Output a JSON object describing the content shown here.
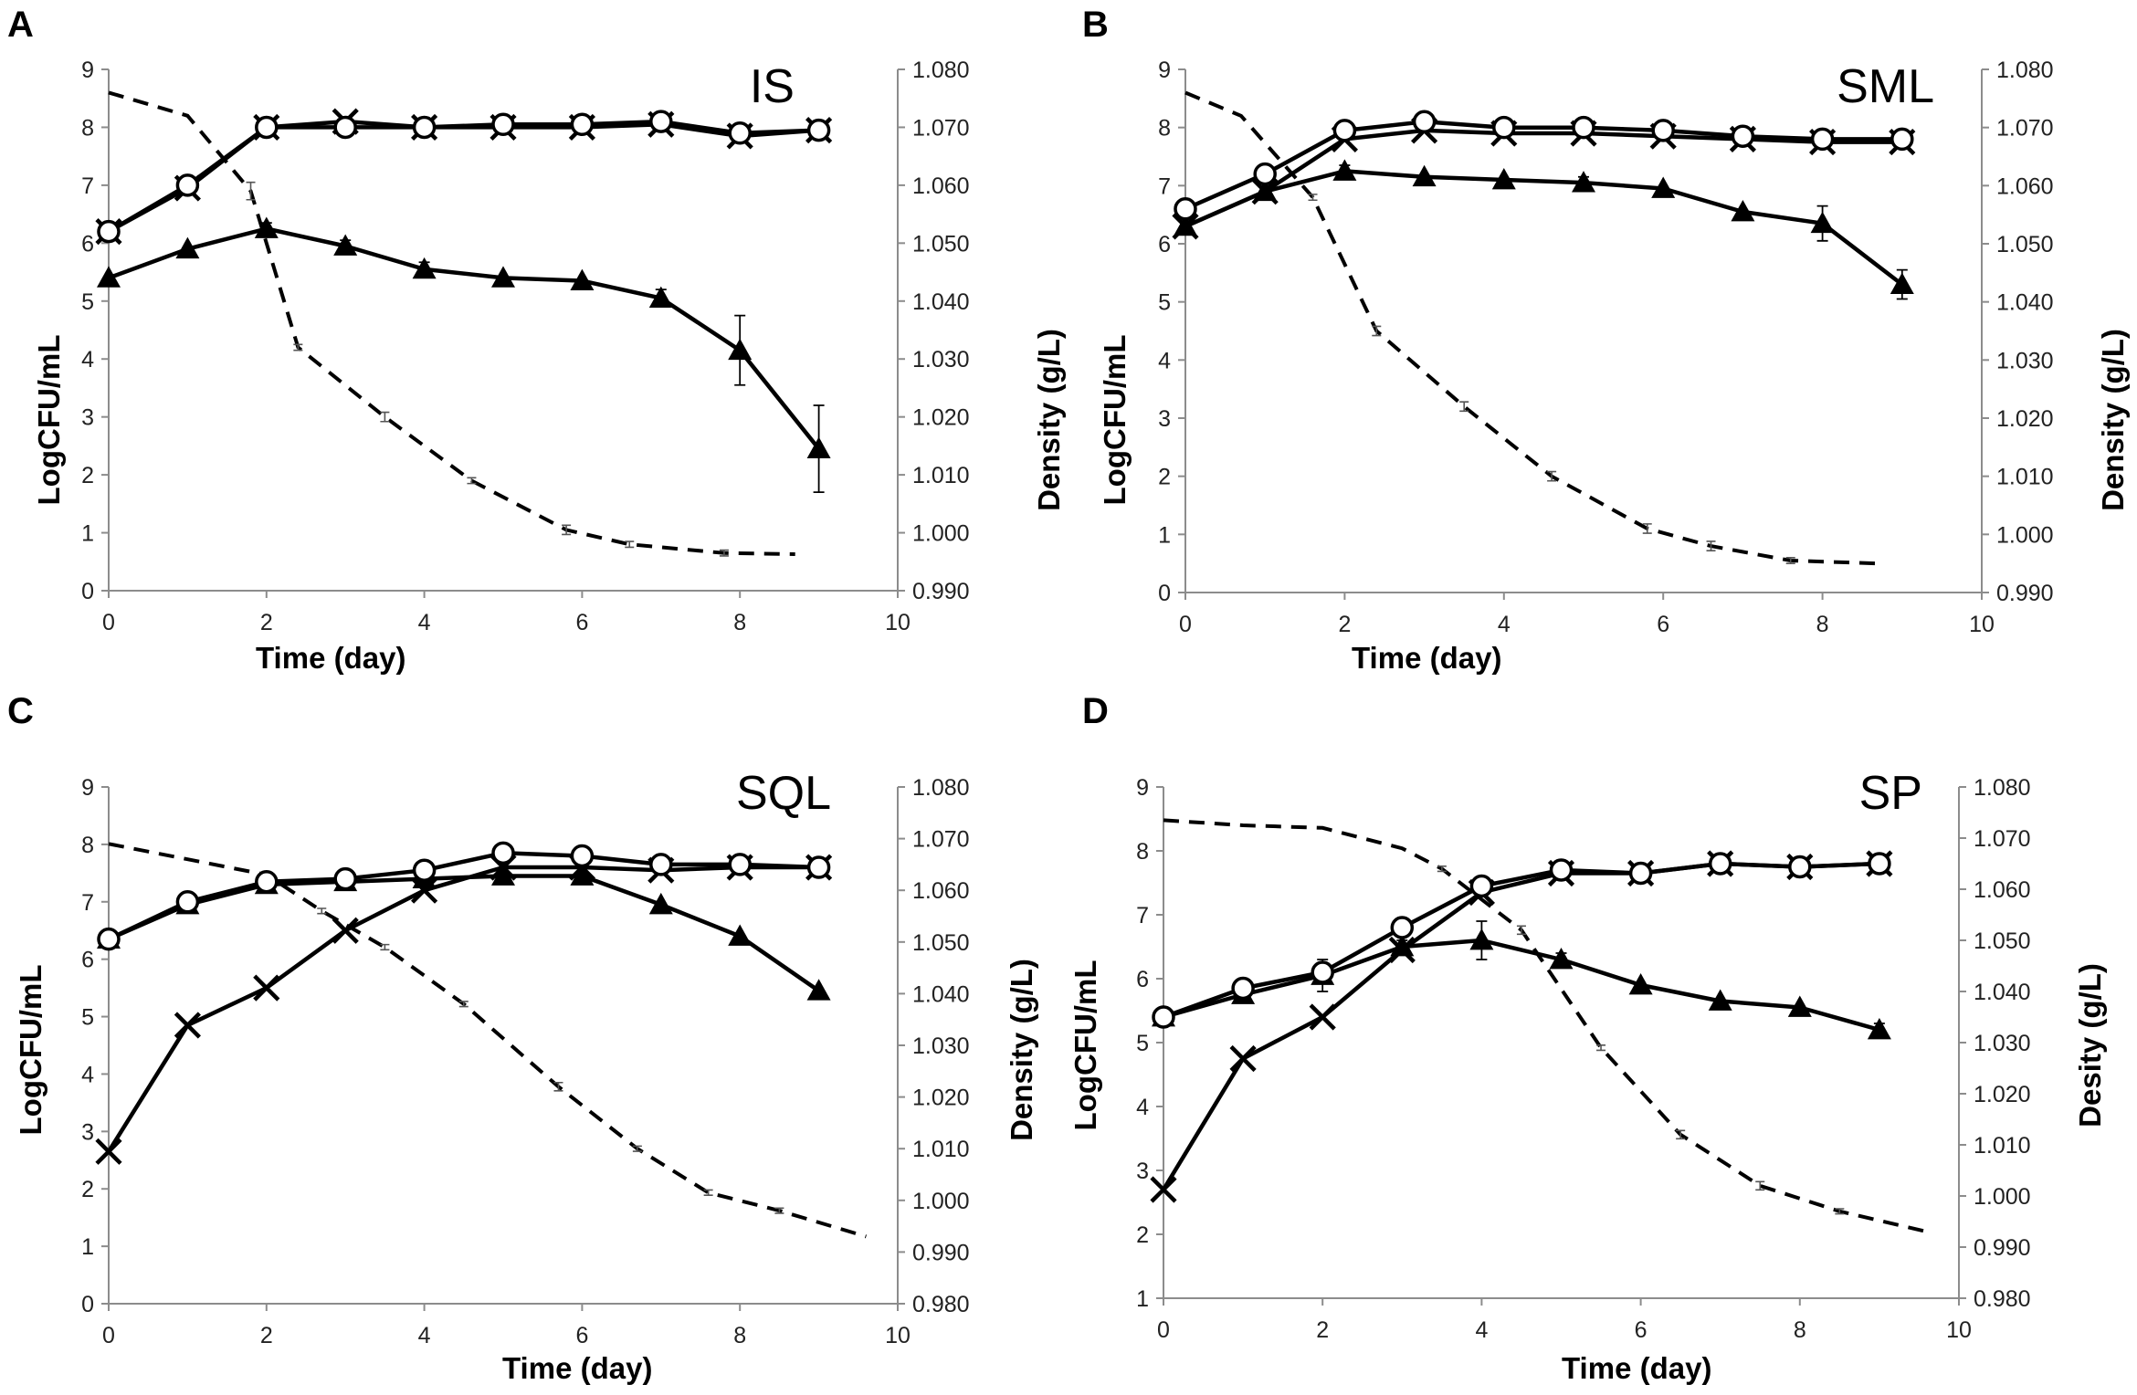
{
  "chart_data": [
    {
      "type": "line",
      "panel": "A",
      "title": "IS",
      "xlabel": "Time (day)",
      "ylabel": "LogCFU/mL",
      "y2label": "Density (g/L)",
      "xlim": [
        0,
        10
      ],
      "ylim": [
        0,
        9
      ],
      "y2lim": [
        0.99,
        1.08
      ],
      "xticks": [
        "0",
        "2",
        "4",
        "6",
        "8",
        "10"
      ],
      "yticks": [
        "0",
        "1",
        "2",
        "3",
        "4",
        "5",
        "6",
        "7",
        "8",
        "9"
      ],
      "y2ticks": [
        "0.990",
        "1.000",
        "1.010",
        "1.020",
        "1.030",
        "1.040",
        "1.050",
        "1.060",
        "1.070",
        "1.080"
      ],
      "series": [
        {
          "name": "circle",
          "marker": "circle",
          "x": [
            0,
            1,
            2,
            3,
            4,
            5,
            6,
            7,
            8,
            9
          ],
          "values": [
            6.2,
            7.0,
            8.0,
            8.0,
            8.0,
            8.05,
            8.05,
            8.1,
            7.9,
            7.95
          ]
        },
        {
          "name": "cross",
          "marker": "x",
          "x": [
            0,
            1,
            2,
            3,
            4,
            5,
            6,
            7,
            8,
            9
          ],
          "values": [
            6.2,
            6.95,
            8.0,
            8.1,
            8.0,
            8.0,
            8.0,
            8.05,
            7.85,
            7.95
          ]
        },
        {
          "name": "triangle",
          "marker": "triangle",
          "x": [
            0,
            1,
            2,
            3,
            4,
            5,
            6,
            7,
            8,
            9
          ],
          "values": [
            5.4,
            5.9,
            6.25,
            5.95,
            5.55,
            5.4,
            5.35,
            5.05,
            4.15,
            2.45
          ],
          "errors": [
            0.05,
            0.05,
            0.1,
            0.1,
            0.12,
            0.08,
            0.08,
            0.15,
            0.6,
            0.75
          ]
        }
      ],
      "density": {
        "x": [
          0,
          1,
          1.8,
          2.4,
          3.5,
          4.6,
          5.8,
          6.6,
          7.8,
          8.7
        ],
        "values": [
          1.076,
          1.072,
          1.059,
          1.032,
          1.02,
          1.009,
          1.0005,
          0.998,
          0.9965,
          0.9963
        ],
        "errors": [
          0,
          0,
          0.0015,
          0.0005,
          0.0008,
          0.0005,
          0.0008,
          0.0005,
          0.0005,
          0
        ]
      }
    },
    {
      "type": "line",
      "panel": "B",
      "title": "SML",
      "xlabel": "Time (day)",
      "ylabel": "LogCFU/mL",
      "y2label": "Density (g/L)",
      "xlim": [
        0,
        10
      ],
      "ylim": [
        0,
        9
      ],
      "y2lim": [
        0.99,
        1.08
      ],
      "xticks": [
        "0",
        "2",
        "4",
        "6",
        "8",
        "10"
      ],
      "yticks": [
        "0",
        "1",
        "2",
        "3",
        "4",
        "5",
        "6",
        "7",
        "8",
        "9"
      ],
      "y2ticks": [
        "0.990",
        "1.000",
        "1.010",
        "1.020",
        "1.030",
        "1.040",
        "1.050",
        "1.060",
        "1.070",
        "1.080"
      ],
      "series": [
        {
          "name": "circle",
          "marker": "circle",
          "x": [
            0,
            1,
            2,
            3,
            4,
            5,
            6,
            7,
            8,
            9
          ],
          "values": [
            6.6,
            7.2,
            7.95,
            8.1,
            8.0,
            8.0,
            7.95,
            7.85,
            7.8,
            7.8
          ]
        },
        {
          "name": "cross",
          "marker": "x",
          "x": [
            0,
            1,
            2,
            3,
            4,
            5,
            6,
            7,
            8,
            9
          ],
          "values": [
            6.3,
            6.9,
            7.8,
            7.95,
            7.9,
            7.9,
            7.85,
            7.8,
            7.75,
            7.75
          ]
        },
        {
          "name": "triangle",
          "marker": "triangle",
          "x": [
            0,
            1,
            2,
            3,
            4,
            5,
            6,
            7,
            8,
            9
          ],
          "values": [
            6.3,
            6.9,
            7.25,
            7.15,
            7.1,
            7.05,
            6.95,
            6.55,
            6.35,
            5.3
          ],
          "errors": [
            0.05,
            0.05,
            0.1,
            0.05,
            0.05,
            0.1,
            0.08,
            0.08,
            0.3,
            0.25
          ]
        }
      ],
      "density": {
        "x": [
          0,
          0.7,
          1.6,
          2.4,
          3.5,
          4.6,
          5.8,
          6.6,
          7.6,
          8.7
        ],
        "values": [
          1.076,
          1.072,
          1.058,
          1.035,
          1.022,
          1.01,
          1.001,
          0.998,
          0.9955,
          0.995
        ],
        "errors": [
          0,
          0,
          0.0005,
          0.0008,
          0.0008,
          0.0008,
          0.0008,
          0.0008,
          0.0005,
          0
        ]
      }
    },
    {
      "type": "line",
      "panel": "C",
      "title": "SQL",
      "xlabel": "Time (day)",
      "ylabel": "LogCFU/mL",
      "y2label": "Density (g/L)",
      "xlim": [
        0,
        10
      ],
      "ylim": [
        0,
        9
      ],
      "y2lim": [
        0.98,
        1.08
      ],
      "xticks": [
        "0",
        "2",
        "4",
        "6",
        "8",
        "10"
      ],
      "yticks": [
        "0",
        "1",
        "2",
        "3",
        "4",
        "5",
        "6",
        "7",
        "8",
        "9"
      ],
      "y2ticks": [
        "0.980",
        "0.990",
        "1.000",
        "1.010",
        "1.020",
        "1.030",
        "1.040",
        "1.050",
        "1.060",
        "1.070",
        "1.080"
      ],
      "series": [
        {
          "name": "circle",
          "marker": "circle",
          "x": [
            0,
            1,
            2,
            3,
            4,
            5,
            6,
            7,
            8,
            9
          ],
          "values": [
            6.35,
            7.0,
            7.35,
            7.4,
            7.55,
            7.85,
            7.8,
            7.65,
            7.65,
            7.6
          ]
        },
        {
          "name": "cross",
          "marker": "x",
          "x": [
            0,
            1,
            2,
            3,
            4,
            5,
            6,
            7,
            8,
            9
          ],
          "values": [
            2.65,
            4.85,
            5.5,
            6.5,
            7.2,
            7.6,
            7.6,
            7.55,
            7.6,
            7.6
          ]
        },
        {
          "name": "triangle",
          "marker": "triangle",
          "x": [
            0,
            1,
            2,
            3,
            4,
            5,
            6,
            7,
            8,
            9
          ],
          "values": [
            6.35,
            6.95,
            7.3,
            7.35,
            7.4,
            7.45,
            7.45,
            6.95,
            6.4,
            5.45
          ],
          "errors": [
            0.05,
            0.05,
            0.05,
            0.05,
            0.05,
            0.05,
            0.05,
            0.05,
            0.05,
            0.05
          ]
        }
      ],
      "density": {
        "x": [
          0,
          1,
          2,
          2.7,
          3.5,
          4.5,
          5.7,
          6.7,
          7.6,
          8.5,
          9.6
        ],
        "values": [
          1.069,
          1.066,
          1.063,
          1.056,
          1.049,
          1.038,
          1.022,
          1.01,
          1.0015,
          0.998,
          0.993
        ],
        "errors": [
          0,
          0,
          0,
          0.0005,
          0.0005,
          0.0005,
          0.0008,
          0.0005,
          0.0005,
          0.0005,
          0
        ]
      }
    },
    {
      "type": "line",
      "panel": "D",
      "title": "SP",
      "xlabel": "Time (day)",
      "ylabel": "LogCFU/mL",
      "y2label": "Desity (g/L)",
      "xlim": [
        0,
        10
      ],
      "ylim": [
        1,
        9
      ],
      "y2lim": [
        0.98,
        1.08
      ],
      "xticks": [
        "0",
        "2",
        "4",
        "6",
        "8",
        "10"
      ],
      "yticks": [
        "1",
        "2",
        "3",
        "4",
        "5",
        "6",
        "7",
        "8",
        "9"
      ],
      "y2ticks": [
        "0.980",
        "0.990",
        "1.000",
        "1.010",
        "1.020",
        "1.030",
        "1.040",
        "1.050",
        "1.060",
        "1.070",
        "1.080"
      ],
      "series": [
        {
          "name": "circle",
          "marker": "circle",
          "x": [
            0,
            1,
            2,
            3,
            4,
            5,
            6,
            7,
            8,
            9
          ],
          "values": [
            5.4,
            5.85,
            6.1,
            6.8,
            7.45,
            7.7,
            7.65,
            7.8,
            7.75,
            7.8
          ]
        },
        {
          "name": "cross",
          "marker": "x",
          "x": [
            0,
            1,
            2,
            3,
            4,
            5,
            6,
            7,
            8,
            9
          ],
          "values": [
            2.7,
            4.75,
            5.4,
            6.45,
            7.35,
            7.65,
            7.65,
            7.8,
            7.75,
            7.8
          ]
        },
        {
          "name": "triangle",
          "marker": "triangle",
          "x": [
            0,
            1,
            2,
            3,
            4,
            5,
            6,
            7,
            8,
            9
          ],
          "values": [
            5.4,
            5.75,
            6.05,
            6.5,
            6.6,
            6.3,
            5.9,
            5.65,
            5.55,
            5.2
          ],
          "errors": [
            0.05,
            0.05,
            0.25,
            0.1,
            0.3,
            0.1,
            0.08,
            0.05,
            0.05,
            0.1
          ]
        }
      ],
      "density": {
        "x": [
          0,
          1,
          2,
          3,
          3.5,
          4.5,
          5.5,
          6.5,
          7.5,
          8.5,
          9.6
        ],
        "values": [
          1.0735,
          1.0725,
          1.072,
          1.068,
          1.064,
          1.052,
          1.029,
          1.012,
          1.002,
          0.997,
          0.993
        ],
        "errors": [
          0,
          0,
          0,
          0,
          0.0005,
          0.0008,
          0.0005,
          0.0008,
          0.0008,
          0.0005,
          0
        ]
      }
    }
  ]
}
